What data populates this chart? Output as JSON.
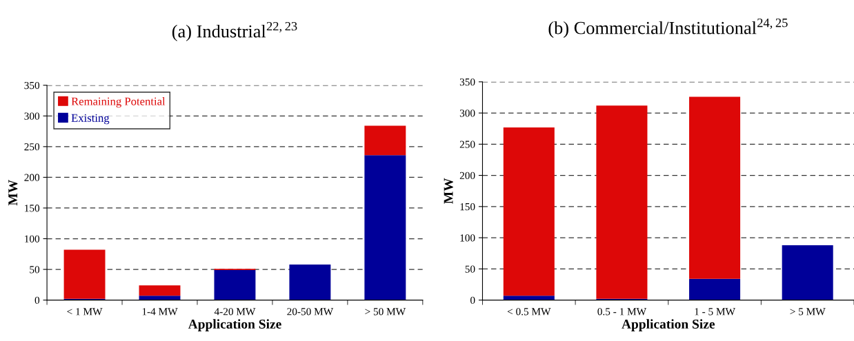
{
  "chart_data": [
    {
      "type": "bar",
      "title": "(a) Industrial$^{22,23}$",
      "xlabel": "Application Size",
      "ylabel": "MW",
      "categories": [
        "< 1 MW",
        "1-4 MW",
        "4-20 MW",
        "20-50 MW",
        "> 50 MW"
      ],
      "stacked": true,
      "series": [
        {
          "name": "Existing",
          "color": "#000099",
          "values": [
            2,
            7,
            49,
            58,
            236
          ]
        },
        {
          "name": "Remaining Potential",
          "color": "#dd0808",
          "values": [
            80,
            17,
            2,
            0,
            48
          ]
        }
      ],
      "ylim": [
        0,
        350
      ],
      "yticks": [
        0,
        50,
        100,
        150,
        200,
        250,
        300,
        350
      ],
      "grid": "y",
      "legend": "top left"
    },
    {
      "type": "bar",
      "title": "(b) Commercial/Institutional$^{24,25}$",
      "xlabel": "Application Size",
      "ylabel": "MW",
      "categories": [
        "< 0.5 MW",
        "0.5 - 1 MW",
        "1 - 5 MW",
        "> 5 MW"
      ],
      "stacked": true,
      "series": [
        {
          "color": "#000099",
          "values": [
            7,
            2,
            34,
            88
          ]
        },
        {
          "color": "#dd0808",
          "values": [
            270,
            310,
            292,
            0
          ]
        }
      ],
      "ylim": [
        0,
        350
      ],
      "yticks": [
        0,
        50,
        100,
        150,
        200,
        250,
        300,
        350
      ],
      "grid": "y",
      "legend": false
    }
  ]
}
